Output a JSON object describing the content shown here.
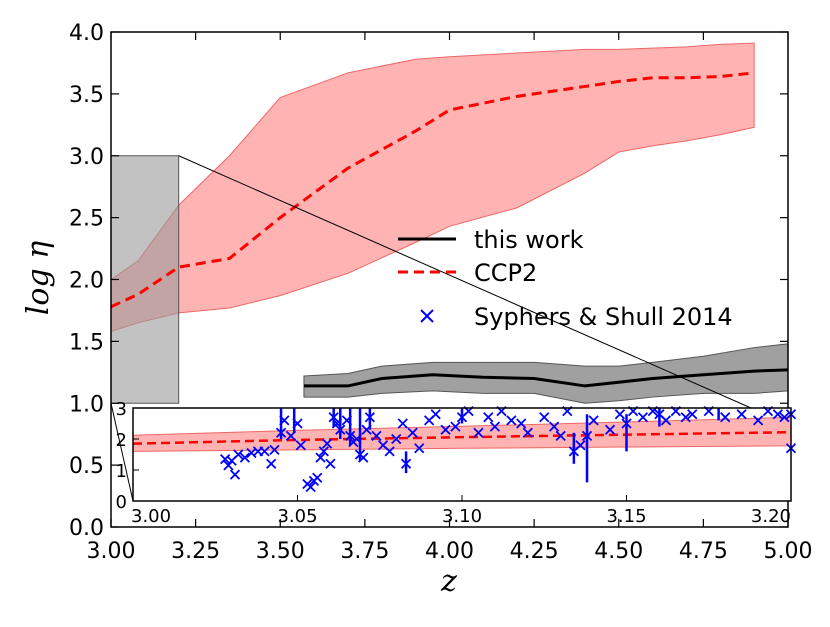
{
  "chart_data": [
    {
      "id": "main",
      "type": "line",
      "xlabel": "z",
      "ylabel": "log η",
      "xlim": [
        3.0,
        5.0
      ],
      "ylim": [
        0.0,
        4.0
      ],
      "xticks": [
        "3.00",
        "3.25",
        "3.50",
        "3.75",
        "4.00",
        "4.25",
        "4.50",
        "4.75",
        "5.00"
      ],
      "yticks": [
        "0.0",
        "0.5",
        "1.0",
        "1.5",
        "2.0",
        "2.5",
        "3.0",
        "3.5",
        "4.0"
      ],
      "legend_position": "center-right",
      "legend": [
        {
          "label": "this work",
          "style": "solid",
          "color": "#000000"
        },
        {
          "label": "CCP2",
          "style": "dashed",
          "color": "#ff0000"
        },
        {
          "label": "Syphers & Shull 2014",
          "style": "x-marker",
          "color": "#0000ff"
        }
      ],
      "series": [
        {
          "name": "CCP2",
          "color": "#ff0000",
          "band_color": "#ff9999",
          "x": [
            3.0,
            3.08,
            3.2,
            3.35,
            3.5,
            3.7,
            3.9,
            4.0,
            4.2,
            4.4,
            4.5,
            4.6,
            4.7,
            4.8,
            4.9
          ],
          "y": [
            1.78,
            1.88,
            2.1,
            2.17,
            2.5,
            2.9,
            3.2,
            3.37,
            3.48,
            3.56,
            3.6,
            3.63,
            3.63,
            3.64,
            3.67
          ],
          "upper": [
            2.0,
            2.15,
            2.6,
            3.0,
            3.47,
            3.67,
            3.78,
            3.8,
            3.83,
            3.86,
            3.86,
            3.87,
            3.88,
            3.9,
            3.91
          ],
          "lower": [
            1.58,
            1.65,
            1.73,
            1.77,
            1.87,
            2.05,
            2.3,
            2.43,
            2.58,
            2.86,
            3.03,
            3.08,
            3.12,
            3.17,
            3.23
          ]
        },
        {
          "name": "this work",
          "color": "#000000",
          "band_color": "#808080",
          "x": [
            3.57,
            3.7,
            3.8,
            3.95,
            4.1,
            4.25,
            4.4,
            4.5,
            4.6,
            4.75,
            4.9,
            5.0
          ],
          "y": [
            1.14,
            1.14,
            1.2,
            1.23,
            1.21,
            1.2,
            1.14,
            1.17,
            1.2,
            1.23,
            1.26,
            1.27
          ],
          "upper": [
            1.22,
            1.24,
            1.3,
            1.33,
            1.33,
            1.33,
            1.3,
            1.3,
            1.33,
            1.38,
            1.45,
            1.48
          ],
          "lower": [
            1.05,
            1.05,
            1.08,
            1.1,
            1.08,
            1.08,
            1.0,
            1.02,
            1.05,
            1.08,
            1.08,
            1.1
          ]
        }
      ],
      "zoom_region": {
        "x": [
          3.0,
          3.2
        ],
        "y": [
          1.0,
          3.0
        ]
      }
    },
    {
      "id": "inset",
      "type": "scatter",
      "xlim": [
        3.0,
        3.2
      ],
      "ylim": [
        0,
        3
      ],
      "xticks": [
        "3.00",
        "3.05",
        "3.10",
        "3.15",
        "3.20"
      ],
      "yticks": [
        "0",
        "1",
        "2",
        "3"
      ],
      "ccp2": {
        "x": [
          3.0,
          3.05,
          3.1,
          3.15,
          3.2
        ],
        "y": [
          1.85,
          1.97,
          2.06,
          2.14,
          2.22
        ],
        "upper": [
          2.12,
          2.28,
          2.41,
          2.55,
          2.7
        ],
        "lower": [
          1.6,
          1.65,
          1.7,
          1.74,
          1.78
        ]
      },
      "syphers_shull_2014": {
        "color": "#0000ff",
        "points": [
          [
            3.028,
            1.35
          ],
          [
            3.029,
            1.15
          ],
          [
            3.03,
            1.3
          ],
          [
            3.031,
            0.85
          ],
          [
            3.032,
            1.5
          ],
          [
            3.034,
            1.4
          ],
          [
            3.036,
            1.55
          ],
          [
            3.038,
            1.6
          ],
          [
            3.04,
            1.6
          ],
          [
            3.042,
            1.2
          ],
          [
            3.043,
            1.65
          ],
          [
            3.045,
            2.2
          ],
          [
            3.046,
            2.6
          ],
          [
            3.048,
            2.1
          ],
          [
            3.05,
            2.5
          ],
          [
            3.051,
            1.8
          ],
          [
            3.053,
            0.55
          ],
          [
            3.054,
            0.45
          ],
          [
            3.055,
            0.65
          ],
          [
            3.056,
            0.75
          ],
          [
            3.057,
            1.4
          ],
          [
            3.058,
            1.6
          ],
          [
            3.059,
            1.85
          ],
          [
            3.06,
            1.2
          ],
          [
            3.061,
            2.7
          ],
          [
            3.062,
            2.5
          ],
          [
            3.063,
            2.3
          ],
          [
            3.065,
            2.6
          ],
          [
            3.066,
            2.1
          ],
          [
            3.067,
            1.9
          ],
          [
            3.068,
            2.0
          ],
          [
            3.069,
            1.5
          ],
          [
            3.07,
            1.4
          ],
          [
            3.071,
            2.3
          ],
          [
            3.072,
            2.7
          ],
          [
            3.074,
            2.1
          ],
          [
            3.076,
            1.8
          ],
          [
            3.078,
            1.6
          ],
          [
            3.08,
            2.0
          ],
          [
            3.082,
            2.5
          ],
          [
            3.083,
            1.2
          ],
          [
            3.085,
            2.2
          ],
          [
            3.087,
            1.7
          ],
          [
            3.09,
            2.6
          ],
          [
            3.092,
            2.8
          ],
          [
            3.095,
            2.3
          ],
          [
            3.098,
            2.4
          ],
          [
            3.1,
            2.7
          ],
          [
            3.102,
            2.9
          ],
          [
            3.105,
            2.2
          ],
          [
            3.108,
            2.7
          ],
          [
            3.11,
            2.4
          ],
          [
            3.112,
            2.9
          ],
          [
            3.115,
            2.6
          ],
          [
            3.118,
            2.5
          ],
          [
            3.12,
            2.2
          ],
          [
            3.125,
            2.7
          ],
          [
            3.128,
            2.4
          ],
          [
            3.13,
            2.1
          ],
          [
            3.132,
            2.9
          ],
          [
            3.134,
            1.6
          ],
          [
            3.136,
            1.8
          ],
          [
            3.138,
            2.1
          ],
          [
            3.14,
            2.6
          ],
          [
            3.145,
            2.3
          ],
          [
            3.148,
            2.8
          ],
          [
            3.15,
            2.5
          ],
          [
            3.152,
            2.9
          ],
          [
            3.155,
            2.7
          ],
          [
            3.158,
            2.9
          ],
          [
            3.16,
            2.8
          ],
          [
            3.162,
            2.6
          ],
          [
            3.165,
            2.9
          ],
          [
            3.168,
            2.7
          ],
          [
            3.17,
            2.8
          ],
          [
            3.175,
            2.9
          ],
          [
            3.18,
            2.7
          ],
          [
            3.185,
            2.8
          ],
          [
            3.19,
            2.6
          ],
          [
            3.193,
            2.9
          ],
          [
            3.196,
            2.8
          ],
          [
            3.198,
            2.7
          ],
          [
            3.2,
            2.8
          ],
          [
            3.2,
            1.7
          ]
        ],
        "lines": [
          [
            3.045,
            2.0,
            3.0
          ],
          [
            3.049,
            2.2,
            3.0
          ],
          [
            3.061,
            2.4,
            3.0
          ],
          [
            3.063,
            2.0,
            3.0
          ],
          [
            3.066,
            1.8,
            3.0
          ],
          [
            3.069,
            1.3,
            3.0
          ],
          [
            3.072,
            2.3,
            3.0
          ],
          [
            3.083,
            0.9,
            1.6
          ],
          [
            3.1,
            2.5,
            3.0
          ],
          [
            3.134,
            1.2,
            2.2
          ],
          [
            3.138,
            0.6,
            2.8
          ],
          [
            3.15,
            1.6,
            2.8
          ],
          [
            3.16,
            2.4,
            3.0
          ],
          [
            3.178,
            2.6,
            3.0
          ]
        ]
      }
    }
  ]
}
